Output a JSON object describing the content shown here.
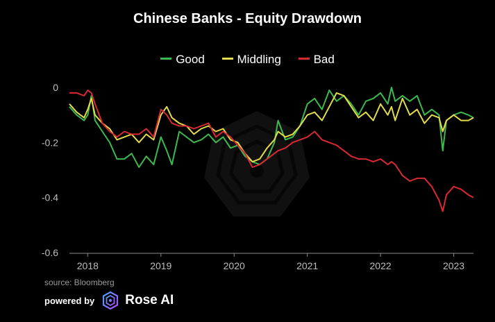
{
  "chart_data": {
    "type": "line",
    "title": "Chinese Banks - Equity Drawdown",
    "xlabel": "",
    "ylabel": "",
    "xlim": [
      2017.75,
      2023.27
    ],
    "ylim": [
      -0.6,
      0
    ],
    "y_ticks": [
      0,
      -0.2,
      -0.4,
      -0.6
    ],
    "y_tick_labels": [
      "0",
      "-0.2",
      "-0.4",
      "-0.6"
    ],
    "x_ticks": [
      2018,
      2019,
      2020,
      2021,
      2022,
      2023
    ],
    "x_tick_labels": [
      "2018",
      "2019",
      "2020",
      "2021",
      "2022",
      "2023"
    ],
    "legend_position": "top-center",
    "grid": false,
    "series": [
      {
        "name": "Good",
        "color": "#3dba4f",
        "x": [
          2017.75,
          2017.85,
          2017.95,
          2018.0,
          2018.05,
          2018.1,
          2018.2,
          2018.3,
          2018.4,
          2018.5,
          2018.6,
          2018.7,
          2018.8,
          2018.9,
          2019.0,
          2019.08,
          2019.15,
          2019.25,
          2019.35,
          2019.45,
          2019.55,
          2019.65,
          2019.75,
          2019.85,
          2019.95,
          2020.05,
          2020.15,
          2020.25,
          2020.35,
          2020.45,
          2020.55,
          2020.6,
          2020.7,
          2020.8,
          2020.9,
          2021.0,
          2021.1,
          2021.2,
          2021.3,
          2021.4,
          2021.5,
          2021.6,
          2021.7,
          2021.8,
          2021.9,
          2022.0,
          2022.1,
          2022.15,
          2022.2,
          2022.3,
          2022.4,
          2022.5,
          2022.6,
          2022.7,
          2022.8,
          2022.85,
          2022.9,
          2023.0,
          2023.1,
          2023.2,
          2023.27
        ],
        "y": [
          -0.07,
          -0.1,
          -0.12,
          -0.1,
          -0.03,
          -0.12,
          -0.16,
          -0.2,
          -0.26,
          -0.26,
          -0.24,
          -0.29,
          -0.25,
          -0.28,
          -0.18,
          -0.23,
          -0.28,
          -0.16,
          -0.18,
          -0.2,
          -0.19,
          -0.17,
          -0.2,
          -0.18,
          -0.22,
          -0.21,
          -0.25,
          -0.27,
          -0.28,
          -0.26,
          -0.2,
          -0.12,
          -0.19,
          -0.18,
          -0.14,
          -0.06,
          -0.04,
          -0.08,
          -0.01,
          -0.05,
          -0.03,
          -0.06,
          -0.1,
          -0.05,
          -0.04,
          -0.02,
          -0.06,
          0.0,
          -0.05,
          -0.03,
          -0.05,
          -0.03,
          -0.1,
          -0.08,
          -0.1,
          -0.23,
          -0.12,
          -0.1,
          -0.09,
          -0.1,
          -0.11
        ]
      },
      {
        "name": "Middling",
        "color": "#e3dc4a",
        "x": [
          2017.75,
          2017.85,
          2017.95,
          2018.0,
          2018.05,
          2018.1,
          2018.2,
          2018.3,
          2018.4,
          2018.5,
          2018.6,
          2018.7,
          2018.8,
          2018.9,
          2019.0,
          2019.08,
          2019.15,
          2019.25,
          2019.35,
          2019.45,
          2019.55,
          2019.65,
          2019.75,
          2019.85,
          2019.95,
          2020.05,
          2020.15,
          2020.25,
          2020.35,
          2020.45,
          2020.55,
          2020.6,
          2020.7,
          2020.8,
          2020.9,
          2021.0,
          2021.1,
          2021.2,
          2021.3,
          2021.4,
          2021.5,
          2021.6,
          2021.7,
          2021.8,
          2021.9,
          2022.0,
          2022.1,
          2022.15,
          2022.2,
          2022.3,
          2022.4,
          2022.5,
          2022.6,
          2022.7,
          2022.8,
          2022.85,
          2022.9,
          2023.0,
          2023.1,
          2023.2,
          2023.27
        ],
        "y": [
          -0.06,
          -0.09,
          -0.11,
          -0.08,
          -0.04,
          -0.1,
          -0.13,
          -0.15,
          -0.19,
          -0.18,
          -0.17,
          -0.2,
          -0.17,
          -0.19,
          -0.1,
          -0.07,
          -0.11,
          -0.13,
          -0.14,
          -0.17,
          -0.15,
          -0.14,
          -0.16,
          -0.15,
          -0.19,
          -0.2,
          -0.24,
          -0.27,
          -0.26,
          -0.22,
          -0.19,
          -0.16,
          -0.18,
          -0.17,
          -0.14,
          -0.1,
          -0.09,
          -0.12,
          -0.07,
          -0.02,
          -0.03,
          -0.07,
          -0.11,
          -0.09,
          -0.12,
          -0.06,
          -0.1,
          -0.07,
          -0.12,
          -0.04,
          -0.1,
          -0.08,
          -0.13,
          -0.1,
          -0.11,
          -0.16,
          -0.12,
          -0.1,
          -0.12,
          -0.12,
          -0.11
        ]
      },
      {
        "name": "Bad",
        "color": "#d82a34",
        "x": [
          2017.75,
          2017.85,
          2017.95,
          2018.0,
          2018.05,
          2018.1,
          2018.2,
          2018.3,
          2018.4,
          2018.5,
          2018.6,
          2018.7,
          2018.8,
          2018.9,
          2019.0,
          2019.08,
          2019.15,
          2019.25,
          2019.35,
          2019.45,
          2019.55,
          2019.65,
          2019.75,
          2019.85,
          2019.95,
          2020.05,
          2020.15,
          2020.25,
          2020.35,
          2020.45,
          2020.55,
          2020.6,
          2020.7,
          2020.8,
          2020.9,
          2021.0,
          2021.1,
          2021.2,
          2021.3,
          2021.4,
          2021.5,
          2021.6,
          2021.7,
          2021.8,
          2021.9,
          2022.0,
          2022.1,
          2022.15,
          2022.2,
          2022.3,
          2022.4,
          2022.5,
          2022.6,
          2022.7,
          2022.8,
          2022.85,
          2022.9,
          2023.0,
          2023.1,
          2023.2,
          2023.27
        ],
        "y": [
          -0.02,
          -0.02,
          -0.03,
          -0.01,
          -0.02,
          -0.06,
          -0.13,
          -0.16,
          -0.18,
          -0.16,
          -0.17,
          -0.17,
          -0.15,
          -0.18,
          -0.08,
          -0.1,
          -0.13,
          -0.14,
          -0.14,
          -0.15,
          -0.14,
          -0.13,
          -0.18,
          -0.16,
          -0.18,
          -0.21,
          -0.24,
          -0.29,
          -0.28,
          -0.26,
          -0.24,
          -0.23,
          -0.22,
          -0.2,
          -0.19,
          -0.18,
          -0.16,
          -0.19,
          -0.2,
          -0.21,
          -0.23,
          -0.25,
          -0.26,
          -0.26,
          -0.27,
          -0.26,
          -0.28,
          -0.27,
          -0.28,
          -0.32,
          -0.34,
          -0.33,
          -0.33,
          -0.36,
          -0.41,
          -0.45,
          -0.39,
          -0.36,
          -0.37,
          -0.39,
          -0.4
        ]
      }
    ]
  },
  "footer": {
    "source": "source: Bloomberg",
    "powered_by": "powered by",
    "brand": "Rose AI",
    "brand_logo_icon": "hexagon-spiral-logo-icon"
  }
}
